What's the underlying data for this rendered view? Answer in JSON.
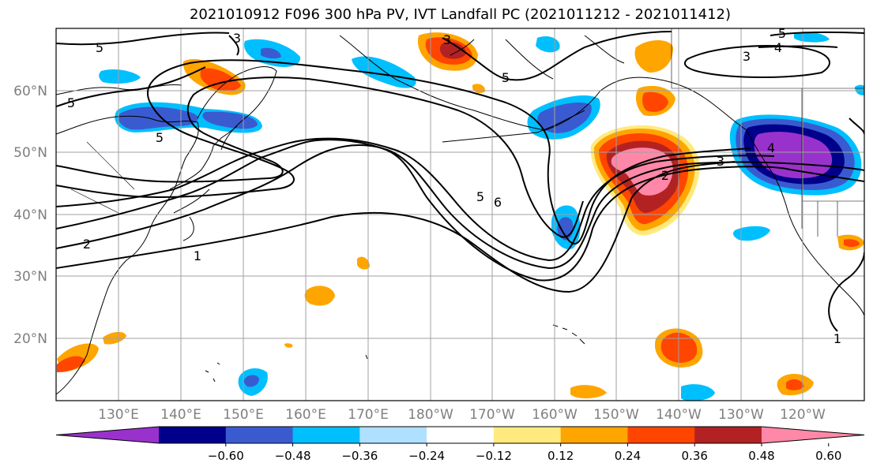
{
  "title": "2021010912 F096 300 hPa PV, IVT Landfall PC (2021011212 - 2021011412)",
  "lat_ticks": [
    "60°N",
    "50°N",
    "40°N",
    "30°N",
    "20°N"
  ],
  "lon_ticks": [
    "130°E",
    "140°E",
    "150°E",
    "160°E",
    "170°E",
    "180°W",
    "170°W",
    "160°W",
    "150°W",
    "140°W",
    "130°W",
    "120°W"
  ],
  "contour_labels": [
    "1",
    "2",
    "3",
    "4",
    "5",
    "6"
  ],
  "colorbar": {
    "colors": [
      "#9932CC",
      "#00008B",
      "#3A5BD0",
      "#00BFFF",
      "#B0E0FF",
      "#FFFFFF",
      "#FFEA80",
      "#FFA500",
      "#FF4500",
      "#B22222",
      "#FF88A8"
    ],
    "tick_labels": [
      "−0.60",
      "−0.48",
      "−0.36",
      "−0.24",
      "−0.12",
      "0.12",
      "0.24",
      "0.36",
      "0.48",
      "0.60"
    ]
  }
}
